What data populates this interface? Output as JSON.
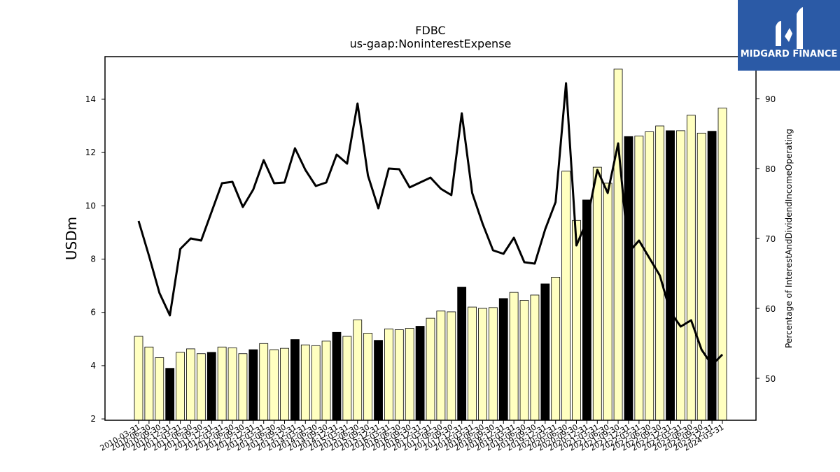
{
  "chart_data": {
    "type": "bar",
    "title": "FDBC",
    "subtitle": "us-gaap:NoninterestExpense",
    "ylabel": "USDm",
    "y2label": "Percentage of InterestAndDividendIncomeOperating",
    "ylim": [
      1.95,
      15.6
    ],
    "y2lim": [
      44,
      96
    ],
    "yticks": [
      2,
      4,
      6,
      8,
      10,
      12,
      14
    ],
    "y2ticks": [
      50,
      60,
      70,
      80,
      90
    ],
    "grid": false,
    "colors": {
      "quarter_bar": "#ffffc0",
      "annual_bar": "#000000",
      "line": "#000000",
      "logo_bg": "#2b5aa6"
    },
    "categories": [
      "2010-03-31",
      "2010-06-30",
      "2010-09-30",
      "2010-12-31",
      "2011-03-31",
      "2011-06-30",
      "2011-09-30",
      "2011-12-31",
      "2012-03-31",
      "2012-06-30",
      "2012-09-30",
      "2012-12-31",
      "2013-03-31",
      "2013-06-30",
      "2013-09-30",
      "2013-12-31",
      "2014-03-31",
      "2014-06-30",
      "2014-09-30",
      "2014-12-31",
      "2015-03-31",
      "2015-06-30",
      "2015-09-30",
      "2015-12-31",
      "2016-03-31",
      "2016-06-30",
      "2016-09-30",
      "2016-12-31",
      "2017-03-31",
      "2017-06-30",
      "2017-09-30",
      "2017-12-31",
      "2018-03-31",
      "2018-06-30",
      "2018-09-30",
      "2018-12-31",
      "2019-03-31",
      "2019-06-30",
      "2019-09-30",
      "2019-12-31",
      "2020-03-31",
      "2020-06-30",
      "2020-09-30",
      "2020-12-31",
      "2021-03-31",
      "2021-06-30",
      "2021-09-30",
      "2021-12-31",
      "2022-03-31",
      "2022-06-30",
      "2022-09-30",
      "2022-12-31",
      "2023-03-31",
      "2023-06-30",
      "2023-09-30",
      "2023-12-31",
      "2024-03-31"
    ],
    "series": [
      {
        "type": "bar",
        "values": [
          5.1,
          4.7,
          4.3,
          3.9,
          4.5,
          4.63,
          4.45,
          4.5,
          4.7,
          4.67,
          4.45,
          4.6,
          4.83,
          4.6,
          4.65,
          4.98,
          4.78,
          4.75,
          4.92,
          5.25,
          5.1,
          5.72,
          5.22,
          4.95,
          5.38,
          5.35,
          5.4,
          5.48,
          5.78,
          6.05,
          6.02,
          6.95,
          6.2,
          6.15,
          6.18,
          6.52,
          6.75,
          6.45,
          6.65,
          7.07,
          7.32,
          11.3,
          9.45,
          10.22,
          11.45,
          10.85,
          15.13,
          12.6,
          12.62,
          12.78,
          13.0,
          12.82,
          12.82,
          13.4,
          12.73,
          12.8,
          13.67
        ],
        "annual": [
          false,
          false,
          false,
          true,
          false,
          false,
          false,
          true,
          false,
          false,
          false,
          true,
          false,
          false,
          false,
          true,
          false,
          false,
          false,
          true,
          false,
          false,
          false,
          true,
          false,
          false,
          false,
          true,
          false,
          false,
          false,
          true,
          false,
          false,
          false,
          true,
          false,
          false,
          false,
          true,
          false,
          false,
          false,
          true,
          false,
          false,
          false,
          true,
          false,
          false,
          false,
          true,
          false,
          false,
          false,
          true,
          false
        ]
      },
      {
        "type": "line",
        "axis": "right",
        "values": [
          72.5,
          67.5,
          62.2,
          59.0,
          68.5,
          70.0,
          69.7,
          73.8,
          77.9,
          78.1,
          74.5,
          77.0,
          81.2,
          77.9,
          78.0,
          82.9,
          79.8,
          77.5,
          78.0,
          82.0,
          80.7,
          89.3,
          79.0,
          74.3,
          80.0,
          79.9,
          77.3,
          78.0,
          78.7,
          77.1,
          76.2,
          87.9,
          76.5,
          72.1,
          68.3,
          67.8,
          70.1,
          66.6,
          66.4,
          71.3,
          75.2,
          92.2,
          69.0,
          72.5,
          79.8,
          76.5,
          83.6,
          68.0,
          69.7,
          67.2,
          64.7,
          59.5,
          57.4,
          58.3,
          54.1,
          51.9,
          53.4
        ]
      }
    ]
  },
  "logo": {
    "text": "MIDGARD FINANCE",
    "icon": "midgard-logo-icon"
  }
}
